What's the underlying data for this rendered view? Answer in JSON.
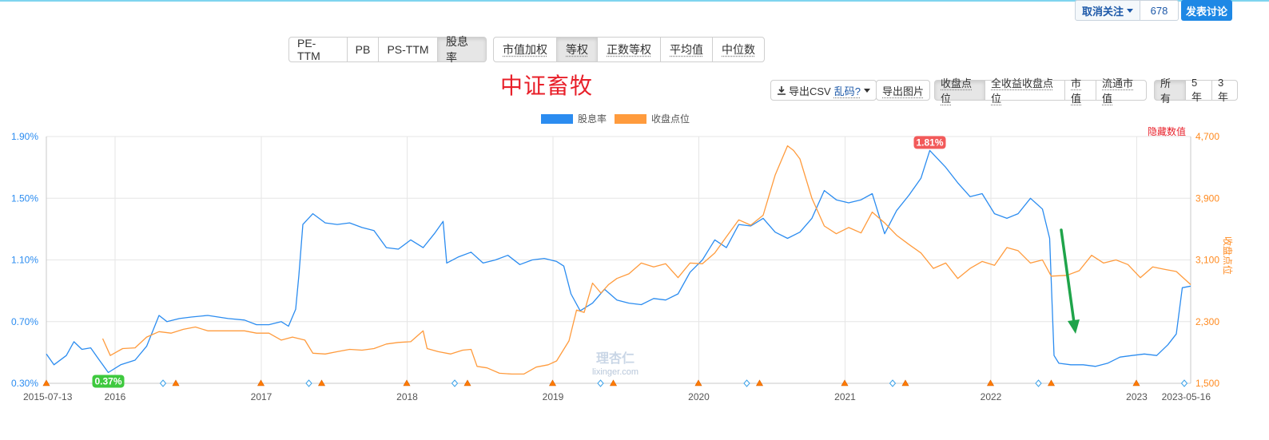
{
  "toolbar": {
    "unfollow_label": "取消关注",
    "follow_count": "678",
    "discuss_label": "发表讨论"
  },
  "metrics": [
    "PE-TTM",
    "PB",
    "PS-TTM",
    "股息率"
  ],
  "weighting": [
    "市值加权",
    "等权",
    "正数等权",
    "平均值",
    "中位数"
  ],
  "export": {
    "csv_label": "导出CSV",
    "garbled_label": "乱码?",
    "image_label": "导出图片"
  },
  "price_types": [
    "收盘点位",
    "全收益收盘点位",
    "市值",
    "流通市值"
  ],
  "ranges": [
    "所有",
    "5年",
    "3年"
  ],
  "hide_values_label": "隐藏数值",
  "watermark": {
    "text": "理杏仁",
    "url": "lixinger.com"
  },
  "colors": {
    "dividend": "#2b8cf0",
    "close": "#ff9b3d",
    "title": "#e8202a",
    "min_badge": "#3ec93e",
    "max_badge": "#f25a5a",
    "arrow": "#1fa44a",
    "event_triangle": "#ff7b00",
    "event_diamond": "#3aa0e8"
  },
  "chart_data": {
    "type": "line",
    "title": "中证畜牧",
    "x_range": [
      "2015-07-13",
      "2023-05-16"
    ],
    "x_ticks": [
      "2015-07-13",
      "2016",
      "2017",
      "2018",
      "2019",
      "2020",
      "2021",
      "2022",
      "2023",
      "2023-05-16"
    ],
    "y_left": {
      "label": "",
      "min": 0.3,
      "max": 1.9,
      "ticks": [
        "0.30%",
        "0.70%",
        "1.10%",
        "1.50%",
        "1.90%"
      ]
    },
    "y_right": {
      "label": "收盘点位",
      "min": 1500,
      "max": 4700,
      "ticks": [
        "1,500",
        "2,300",
        "3,100",
        "3,900",
        "4,700"
      ]
    },
    "grid": true,
    "legend_position": "top-center",
    "annotations": [
      {
        "series": "股息率",
        "label": "0.37%",
        "x": "2015-12-15",
        "y": 0.37,
        "kind": "min"
      },
      {
        "series": "股息率",
        "label": "1.81%",
        "x": "2021-08-01",
        "y": 1.81,
        "kind": "max"
      }
    ],
    "series": [
      {
        "name": "股息率",
        "axis": "left",
        "points": [
          [
            "2015-07-13",
            0.49
          ],
          [
            "2015-08-01",
            0.42
          ],
          [
            "2015-09-01",
            0.48
          ],
          [
            "2015-09-20",
            0.57
          ],
          [
            "2015-10-10",
            0.52
          ],
          [
            "2015-11-01",
            0.53
          ],
          [
            "2015-11-20",
            0.46
          ],
          [
            "2015-12-15",
            0.37
          ],
          [
            "2016-01-15",
            0.42
          ],
          [
            "2016-02-20",
            0.45
          ],
          [
            "2016-03-20",
            0.54
          ],
          [
            "2016-04-20",
            0.74
          ],
          [
            "2016-05-10",
            0.7
          ],
          [
            "2016-06-10",
            0.72
          ],
          [
            "2016-07-10",
            0.73
          ],
          [
            "2016-08-20",
            0.74
          ],
          [
            "2016-10-10",
            0.72
          ],
          [
            "2016-11-20",
            0.71
          ],
          [
            "2016-12-20",
            0.68
          ],
          [
            "2017-01-20",
            0.68
          ],
          [
            "2017-02-20",
            0.7
          ],
          [
            "2017-03-10",
            0.67
          ],
          [
            "2017-03-28",
            0.78
          ],
          [
            "2017-04-05",
            1.0
          ],
          [
            "2017-04-15",
            1.33
          ],
          [
            "2017-05-10",
            1.4
          ],
          [
            "2017-06-10",
            1.34
          ],
          [
            "2017-07-10",
            1.33
          ],
          [
            "2017-08-10",
            1.34
          ],
          [
            "2017-09-10",
            1.31
          ],
          [
            "2017-10-10",
            1.29
          ],
          [
            "2017-11-10",
            1.18
          ],
          [
            "2017-12-10",
            1.17
          ],
          [
            "2018-01-10",
            1.23
          ],
          [
            "2018-02-10",
            1.18
          ],
          [
            "2018-03-10",
            1.27
          ],
          [
            "2018-04-01",
            1.35
          ],
          [
            "2018-04-10",
            1.08
          ],
          [
            "2018-05-10",
            1.12
          ],
          [
            "2018-06-10",
            1.15
          ],
          [
            "2018-07-10",
            1.08
          ],
          [
            "2018-08-10",
            1.1
          ],
          [
            "2018-09-10",
            1.13
          ],
          [
            "2018-10-10",
            1.07
          ],
          [
            "2018-11-10",
            1.1
          ],
          [
            "2018-12-10",
            1.11
          ],
          [
            "2019-01-10",
            1.09
          ],
          [
            "2019-01-28",
            1.06
          ],
          [
            "2019-02-15",
            0.88
          ],
          [
            "2019-03-10",
            0.77
          ],
          [
            "2019-04-10",
            0.82
          ],
          [
            "2019-05-10",
            0.91
          ],
          [
            "2019-06-10",
            0.84
          ],
          [
            "2019-07-10",
            0.82
          ],
          [
            "2019-08-10",
            0.81
          ],
          [
            "2019-09-10",
            0.85
          ],
          [
            "2019-10-10",
            0.84
          ],
          [
            "2019-11-10",
            0.88
          ],
          [
            "2019-12-10",
            1.02
          ],
          [
            "2020-01-10",
            1.1
          ],
          [
            "2020-02-10",
            1.23
          ],
          [
            "2020-03-10",
            1.18
          ],
          [
            "2020-04-10",
            1.33
          ],
          [
            "2020-05-10",
            1.32
          ],
          [
            "2020-06-10",
            1.37
          ],
          [
            "2020-07-10",
            1.28
          ],
          [
            "2020-08-10",
            1.24
          ],
          [
            "2020-09-10",
            1.28
          ],
          [
            "2020-10-10",
            1.37
          ],
          [
            "2020-11-10",
            1.55
          ],
          [
            "2020-12-10",
            1.49
          ],
          [
            "2021-01-10",
            1.47
          ],
          [
            "2021-02-10",
            1.49
          ],
          [
            "2021-03-10",
            1.53
          ],
          [
            "2021-04-10",
            1.27
          ],
          [
            "2021-05-10",
            1.42
          ],
          [
            "2021-06-10",
            1.52
          ],
          [
            "2021-07-10",
            1.63
          ],
          [
            "2021-08-01",
            1.81
          ],
          [
            "2021-09-10",
            1.7
          ],
          [
            "2021-10-10",
            1.6
          ],
          [
            "2021-11-10",
            1.51
          ],
          [
            "2021-12-10",
            1.53
          ],
          [
            "2022-01-10",
            1.4
          ],
          [
            "2022-02-10",
            1.37
          ],
          [
            "2022-03-10",
            1.4
          ],
          [
            "2022-04-10",
            1.5
          ],
          [
            "2022-05-10",
            1.43
          ],
          [
            "2022-05-28",
            1.24
          ],
          [
            "2022-06-08",
            0.48
          ],
          [
            "2022-06-20",
            0.43
          ],
          [
            "2022-07-20",
            0.42
          ],
          [
            "2022-08-20",
            0.42
          ],
          [
            "2022-09-20",
            0.41
          ],
          [
            "2022-10-20",
            0.43
          ],
          [
            "2022-11-20",
            0.47
          ],
          [
            "2022-12-20",
            0.48
          ],
          [
            "2023-01-20",
            0.49
          ],
          [
            "2023-02-20",
            0.48
          ],
          [
            "2023-03-20",
            0.55
          ],
          [
            "2023-04-10",
            0.62
          ],
          [
            "2023-04-25",
            0.92
          ],
          [
            "2023-05-16",
            0.93
          ]
        ]
      },
      {
        "name": "收盘点位",
        "axis": "right",
        "points": [
          [
            "2015-12-01",
            2080
          ],
          [
            "2015-12-20",
            1860
          ],
          [
            "2016-01-20",
            1950
          ],
          [
            "2016-02-20",
            1960
          ],
          [
            "2016-03-20",
            2100
          ],
          [
            "2016-04-20",
            2170
          ],
          [
            "2016-05-20",
            2150
          ],
          [
            "2016-06-20",
            2200
          ],
          [
            "2016-07-20",
            2230
          ],
          [
            "2016-08-20",
            2180
          ],
          [
            "2016-10-10",
            2180
          ],
          [
            "2016-11-20",
            2180
          ],
          [
            "2016-12-20",
            2150
          ],
          [
            "2017-01-20",
            2150
          ],
          [
            "2017-02-20",
            2060
          ],
          [
            "2017-03-20",
            2100
          ],
          [
            "2017-04-20",
            2060
          ],
          [
            "2017-05-10",
            1890
          ],
          [
            "2017-06-10",
            1880
          ],
          [
            "2017-07-10",
            1910
          ],
          [
            "2017-08-10",
            1940
          ],
          [
            "2017-09-10",
            1930
          ],
          [
            "2017-10-10",
            1950
          ],
          [
            "2017-11-10",
            2010
          ],
          [
            "2017-12-10",
            2030
          ],
          [
            "2018-01-10",
            2040
          ],
          [
            "2018-02-10",
            2180
          ],
          [
            "2018-02-20",
            1950
          ],
          [
            "2018-03-20",
            1910
          ],
          [
            "2018-04-20",
            1880
          ],
          [
            "2018-05-20",
            1930
          ],
          [
            "2018-06-10",
            1940
          ],
          [
            "2018-06-25",
            1720
          ],
          [
            "2018-07-20",
            1700
          ],
          [
            "2018-08-20",
            1630
          ],
          [
            "2018-09-20",
            1620
          ],
          [
            "2018-10-20",
            1620
          ],
          [
            "2018-11-20",
            1710
          ],
          [
            "2018-12-20",
            1740
          ],
          [
            "2019-01-10",
            1790
          ],
          [
            "2019-02-10",
            2050
          ],
          [
            "2019-03-01",
            2450
          ],
          [
            "2019-03-20",
            2420
          ],
          [
            "2019-04-10",
            2800
          ],
          [
            "2019-05-01",
            2670
          ],
          [
            "2019-05-20",
            2780
          ],
          [
            "2019-06-10",
            2860
          ],
          [
            "2019-07-10",
            2920
          ],
          [
            "2019-08-10",
            3060
          ],
          [
            "2019-09-10",
            3010
          ],
          [
            "2019-10-10",
            3050
          ],
          [
            "2019-11-10",
            2870
          ],
          [
            "2019-12-10",
            3060
          ],
          [
            "2020-01-10",
            3050
          ],
          [
            "2020-02-10",
            3190
          ],
          [
            "2020-03-10",
            3400
          ],
          [
            "2020-04-10",
            3620
          ],
          [
            "2020-05-10",
            3550
          ],
          [
            "2020-06-10",
            3680
          ],
          [
            "2020-07-10",
            4200
          ],
          [
            "2020-08-10",
            4580
          ],
          [
            "2020-08-25",
            4520
          ],
          [
            "2020-09-10",
            4410
          ],
          [
            "2020-10-10",
            3900
          ],
          [
            "2020-11-10",
            3540
          ],
          [
            "2020-12-10",
            3440
          ],
          [
            "2021-01-10",
            3520
          ],
          [
            "2021-02-10",
            3450
          ],
          [
            "2021-03-10",
            3720
          ],
          [
            "2021-04-10",
            3580
          ],
          [
            "2021-05-10",
            3420
          ],
          [
            "2021-06-10",
            3300
          ],
          [
            "2021-07-10",
            3190
          ],
          [
            "2021-08-10",
            2990
          ],
          [
            "2021-09-10",
            3060
          ],
          [
            "2021-10-10",
            2860
          ],
          [
            "2021-11-10",
            2990
          ],
          [
            "2021-12-10",
            3080
          ],
          [
            "2022-01-10",
            3030
          ],
          [
            "2022-02-10",
            3260
          ],
          [
            "2022-03-10",
            3220
          ],
          [
            "2022-04-10",
            3060
          ],
          [
            "2022-05-10",
            3100
          ],
          [
            "2022-06-01",
            2890
          ],
          [
            "2022-07-10",
            2900
          ],
          [
            "2022-08-10",
            2960
          ],
          [
            "2022-09-10",
            3160
          ],
          [
            "2022-10-10",
            3060
          ],
          [
            "2022-11-10",
            3100
          ],
          [
            "2022-12-10",
            3040
          ],
          [
            "2023-01-10",
            2870
          ],
          [
            "2023-02-10",
            3010
          ],
          [
            "2023-03-10",
            2980
          ],
          [
            "2023-04-10",
            2950
          ],
          [
            "2023-05-16",
            2780
          ]
        ]
      }
    ],
    "event_markers": {
      "triangles": [
        "2015-07-13",
        "2016-06-01",
        "2016-12-31",
        "2017-06-01",
        "2017-12-31",
        "2018-06-01",
        "2018-12-31",
        "2019-06-01",
        "2019-12-31",
        "2020-06-01",
        "2020-12-31",
        "2021-06-01",
        "2021-12-31",
        "2022-06-01",
        "2022-12-31"
      ],
      "diamonds": [
        "2016-04-30",
        "2017-04-30",
        "2018-04-30",
        "2019-04-30",
        "2020-04-30",
        "2021-04-30",
        "2022-04-30",
        "2023-04-30"
      ]
    }
  }
}
